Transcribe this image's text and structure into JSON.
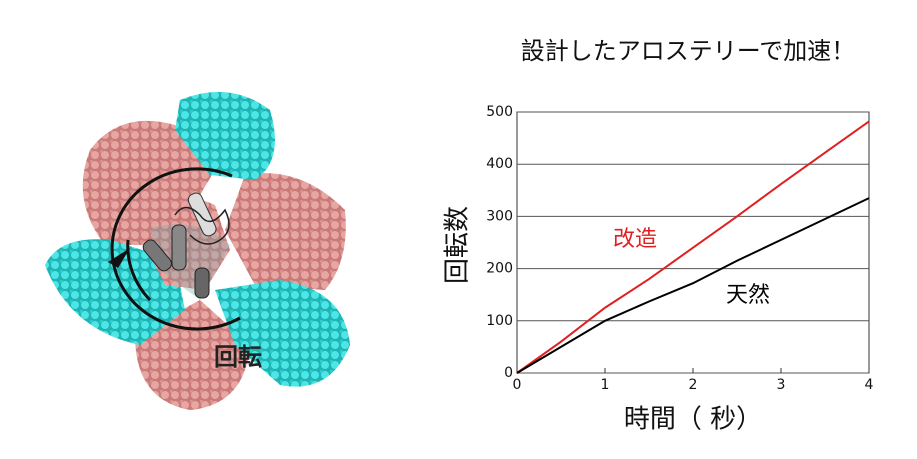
{
  "illustration": {
    "label": "回転"
  },
  "chart_data": {
    "type": "line",
    "title": "設計したアロステリーで加速！",
    "x_label": "時間（ 秒）",
    "y_label": "回転数",
    "x": [
      0,
      0.5,
      1,
      1.5,
      2,
      2.5,
      3,
      3.5,
      4
    ],
    "series": [
      {
        "name": "改造",
        "color": "#e02020",
        "values": [
          0,
          60,
          125,
          180,
          240,
          300,
          362,
          422,
          482
        ]
      },
      {
        "name": "天然",
        "color": "#000000",
        "values": [
          0,
          50,
          100,
          137,
          172,
          215,
          255,
          295,
          335
        ]
      }
    ],
    "xlim": [
      0,
      4
    ],
    "ylim": [
      0,
      500
    ],
    "xticks": [
      0,
      1,
      2,
      3,
      4
    ],
    "yticks": [
      0,
      100,
      200,
      300,
      400,
      500
    ],
    "grid": true
  }
}
